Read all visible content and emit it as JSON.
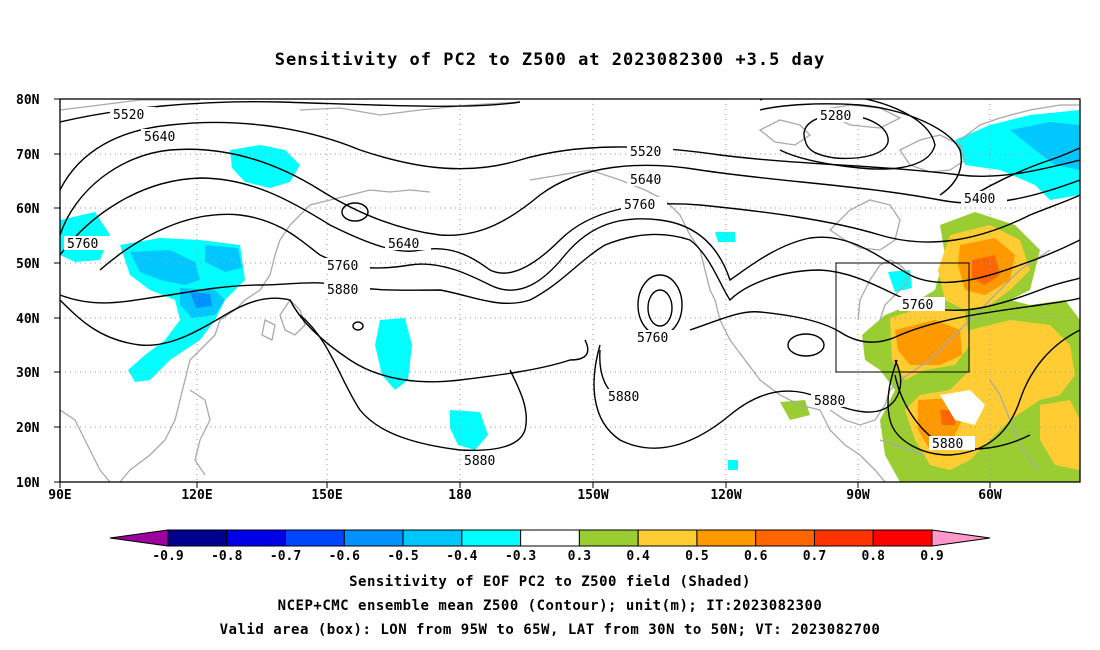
{
  "title": "Sensitivity of PC2 to Z500 at 2023082300 +3.5 day",
  "lat_labels": [
    "80N",
    "70N",
    "60N",
    "50N",
    "40N",
    "30N",
    "20N",
    "10N"
  ],
  "lon_labels": [
    "90E",
    "120E",
    "150E",
    "180",
    "150W",
    "120W",
    "90W",
    "60W"
  ],
  "contour_labels": [
    "5280",
    "5400",
    "5520",
    "5520",
    "5640",
    "5640",
    "5640",
    "5760",
    "5760",
    "5760",
    "5760",
    "5760",
    "5880",
    "5880",
    "5880",
    "5880"
  ],
  "colorbar": {
    "labels": [
      "-0.9",
      "-0.8",
      "-0.7",
      "-0.6",
      "-0.5",
      "-0.4",
      "-0.3",
      "0.3",
      "0.4",
      "0.5",
      "0.6",
      "0.7",
      "0.8",
      "0.9"
    ],
    "colors": [
      "#9d009d",
      "#00008f",
      "#0000e8",
      "#0045ff",
      "#0091ff",
      "#00c8ff",
      "#00ffff",
      "#ffffff",
      "#9acd32",
      "#ffcc33",
      "#ff9900",
      "#ff6600",
      "#ff3300",
      "#ff0000",
      "#ff99cc"
    ]
  },
  "footer": {
    "line1": "Sensitivity of EOF PC2 to Z500 field (Shaded)",
    "line2": "NCEP+CMC ensemble mean Z500 (Contour); unit(m); IT:2023082300",
    "line3": "Valid area (box): LON from 95W to 65W, LAT from 30N to 50N; VT: 2023082700"
  },
  "valid_box": {
    "lon_west": "95W",
    "lon_east": "65W",
    "lat_south": "30N",
    "lat_north": "50N"
  }
}
